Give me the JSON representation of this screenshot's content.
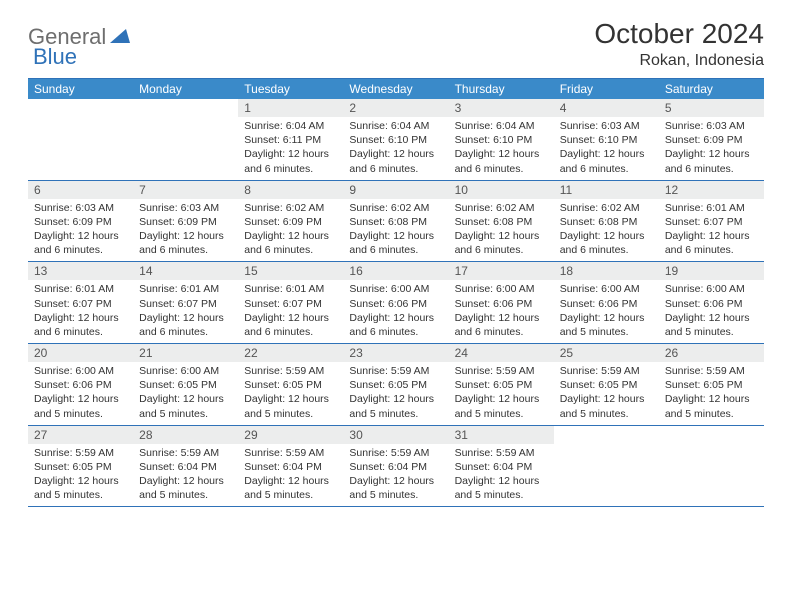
{
  "logo": {
    "general": "General",
    "blue": "Blue"
  },
  "title": "October 2024",
  "location": "Rokan, Indonesia",
  "colors": {
    "header_bar": "#3a8ac9",
    "border": "#2f72b8",
    "daynum_bg": "#eceded",
    "text": "#333333",
    "logo_gray": "#6e6e6e",
    "logo_blue": "#2f72b8"
  },
  "weekdays": [
    "Sunday",
    "Monday",
    "Tuesday",
    "Wednesday",
    "Thursday",
    "Friday",
    "Saturday"
  ],
  "weeks": [
    [
      {
        "n": "",
        "sr": "",
        "ss": "",
        "dl": ""
      },
      {
        "n": "",
        "sr": "",
        "ss": "",
        "dl": ""
      },
      {
        "n": "1",
        "sr": "Sunrise: 6:04 AM",
        "ss": "Sunset: 6:11 PM",
        "dl": "Daylight: 12 hours and 6 minutes."
      },
      {
        "n": "2",
        "sr": "Sunrise: 6:04 AM",
        "ss": "Sunset: 6:10 PM",
        "dl": "Daylight: 12 hours and 6 minutes."
      },
      {
        "n": "3",
        "sr": "Sunrise: 6:04 AM",
        "ss": "Sunset: 6:10 PM",
        "dl": "Daylight: 12 hours and 6 minutes."
      },
      {
        "n": "4",
        "sr": "Sunrise: 6:03 AM",
        "ss": "Sunset: 6:10 PM",
        "dl": "Daylight: 12 hours and 6 minutes."
      },
      {
        "n": "5",
        "sr": "Sunrise: 6:03 AM",
        "ss": "Sunset: 6:09 PM",
        "dl": "Daylight: 12 hours and 6 minutes."
      }
    ],
    [
      {
        "n": "6",
        "sr": "Sunrise: 6:03 AM",
        "ss": "Sunset: 6:09 PM",
        "dl": "Daylight: 12 hours and 6 minutes."
      },
      {
        "n": "7",
        "sr": "Sunrise: 6:03 AM",
        "ss": "Sunset: 6:09 PM",
        "dl": "Daylight: 12 hours and 6 minutes."
      },
      {
        "n": "8",
        "sr": "Sunrise: 6:02 AM",
        "ss": "Sunset: 6:09 PM",
        "dl": "Daylight: 12 hours and 6 minutes."
      },
      {
        "n": "9",
        "sr": "Sunrise: 6:02 AM",
        "ss": "Sunset: 6:08 PM",
        "dl": "Daylight: 12 hours and 6 minutes."
      },
      {
        "n": "10",
        "sr": "Sunrise: 6:02 AM",
        "ss": "Sunset: 6:08 PM",
        "dl": "Daylight: 12 hours and 6 minutes."
      },
      {
        "n": "11",
        "sr": "Sunrise: 6:02 AM",
        "ss": "Sunset: 6:08 PM",
        "dl": "Daylight: 12 hours and 6 minutes."
      },
      {
        "n": "12",
        "sr": "Sunrise: 6:01 AM",
        "ss": "Sunset: 6:07 PM",
        "dl": "Daylight: 12 hours and 6 minutes."
      }
    ],
    [
      {
        "n": "13",
        "sr": "Sunrise: 6:01 AM",
        "ss": "Sunset: 6:07 PM",
        "dl": "Daylight: 12 hours and 6 minutes."
      },
      {
        "n": "14",
        "sr": "Sunrise: 6:01 AM",
        "ss": "Sunset: 6:07 PM",
        "dl": "Daylight: 12 hours and 6 minutes."
      },
      {
        "n": "15",
        "sr": "Sunrise: 6:01 AM",
        "ss": "Sunset: 6:07 PM",
        "dl": "Daylight: 12 hours and 6 minutes."
      },
      {
        "n": "16",
        "sr": "Sunrise: 6:00 AM",
        "ss": "Sunset: 6:06 PM",
        "dl": "Daylight: 12 hours and 6 minutes."
      },
      {
        "n": "17",
        "sr": "Sunrise: 6:00 AM",
        "ss": "Sunset: 6:06 PM",
        "dl": "Daylight: 12 hours and 6 minutes."
      },
      {
        "n": "18",
        "sr": "Sunrise: 6:00 AM",
        "ss": "Sunset: 6:06 PM",
        "dl": "Daylight: 12 hours and 5 minutes."
      },
      {
        "n": "19",
        "sr": "Sunrise: 6:00 AM",
        "ss": "Sunset: 6:06 PM",
        "dl": "Daylight: 12 hours and 5 minutes."
      }
    ],
    [
      {
        "n": "20",
        "sr": "Sunrise: 6:00 AM",
        "ss": "Sunset: 6:06 PM",
        "dl": "Daylight: 12 hours and 5 minutes."
      },
      {
        "n": "21",
        "sr": "Sunrise: 6:00 AM",
        "ss": "Sunset: 6:05 PM",
        "dl": "Daylight: 12 hours and 5 minutes."
      },
      {
        "n": "22",
        "sr": "Sunrise: 5:59 AM",
        "ss": "Sunset: 6:05 PM",
        "dl": "Daylight: 12 hours and 5 minutes."
      },
      {
        "n": "23",
        "sr": "Sunrise: 5:59 AM",
        "ss": "Sunset: 6:05 PM",
        "dl": "Daylight: 12 hours and 5 minutes."
      },
      {
        "n": "24",
        "sr": "Sunrise: 5:59 AM",
        "ss": "Sunset: 6:05 PM",
        "dl": "Daylight: 12 hours and 5 minutes."
      },
      {
        "n": "25",
        "sr": "Sunrise: 5:59 AM",
        "ss": "Sunset: 6:05 PM",
        "dl": "Daylight: 12 hours and 5 minutes."
      },
      {
        "n": "26",
        "sr": "Sunrise: 5:59 AM",
        "ss": "Sunset: 6:05 PM",
        "dl": "Daylight: 12 hours and 5 minutes."
      }
    ],
    [
      {
        "n": "27",
        "sr": "Sunrise: 5:59 AM",
        "ss": "Sunset: 6:05 PM",
        "dl": "Daylight: 12 hours and 5 minutes."
      },
      {
        "n": "28",
        "sr": "Sunrise: 5:59 AM",
        "ss": "Sunset: 6:04 PM",
        "dl": "Daylight: 12 hours and 5 minutes."
      },
      {
        "n": "29",
        "sr": "Sunrise: 5:59 AM",
        "ss": "Sunset: 6:04 PM",
        "dl": "Daylight: 12 hours and 5 minutes."
      },
      {
        "n": "30",
        "sr": "Sunrise: 5:59 AM",
        "ss": "Sunset: 6:04 PM",
        "dl": "Daylight: 12 hours and 5 minutes."
      },
      {
        "n": "31",
        "sr": "Sunrise: 5:59 AM",
        "ss": "Sunset: 6:04 PM",
        "dl": "Daylight: 12 hours and 5 minutes."
      },
      {
        "n": "",
        "sr": "",
        "ss": "",
        "dl": ""
      },
      {
        "n": "",
        "sr": "",
        "ss": "",
        "dl": ""
      }
    ]
  ]
}
